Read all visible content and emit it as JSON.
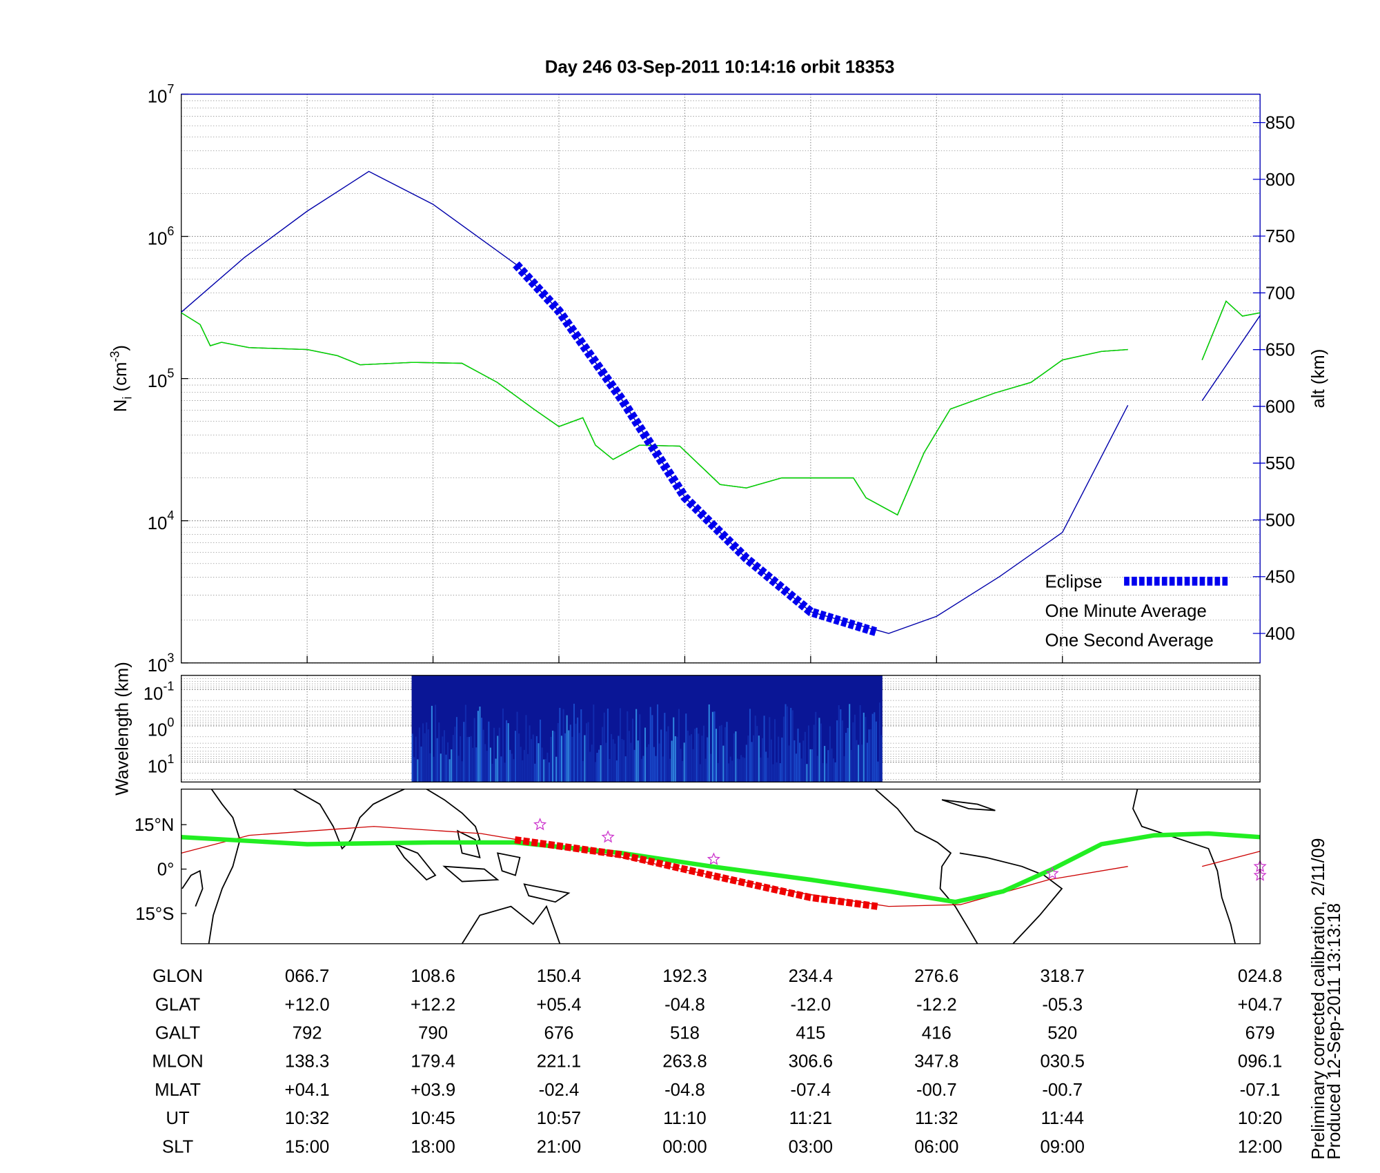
{
  "chart_data": [
    {
      "type": "line",
      "title": "Day 246  03-Sep-2011 10:14:16   orbit 18353",
      "ylabel": [
        "N",
        "i",
        " (cm",
        "-3",
        ")"
      ],
      "y2label": "alt (km)",
      "ylog": true,
      "ylim": [
        1000,
        10000000
      ],
      "yticks": [
        {
          "value": 1000,
          "label": "10",
          "exponent": "3"
        },
        {
          "value": 10000,
          "label": "10",
          "exponent": "4"
        },
        {
          "value": 100000,
          "label": "10",
          "exponent": "5"
        },
        {
          "value": 1000000,
          "label": "10",
          "exponent": "6"
        },
        {
          "value": 10000000,
          "label": "10",
          "exponent": "7"
        }
      ],
      "minor_grid": true,
      "grid": true,
      "y2lim": [
        374,
        875
      ],
      "y2ticks": [
        400,
        450,
        500,
        550,
        600,
        650,
        700,
        750,
        800,
        850
      ],
      "y2color": "#0000cc",
      "xlim": [
        0,
        8.57
      ],
      "xticks": [
        1,
        2,
        3,
        4,
        5,
        6,
        7
      ],
      "legend": "lower right",
      "series": [
        {
          "name": "Eclipse",
          "color": "#0000ee",
          "style": "dashed",
          "axis": "y2",
          "x": [
            2.66,
            3,
            3.5,
            4,
            4.49,
            5,
            5.53
          ],
          "values": [
            725,
            684,
            606,
            520,
            466,
            419,
            401
          ]
        },
        {
          "name": "One Minute Average",
          "color": "#000000",
          "x": [
            0,
            0.15,
            0.23,
            0.32,
            0.54,
            1,
            1.24,
            1.42,
            1.84,
            2.23,
            2.51,
            2.8,
            3,
            3.19,
            3.29,
            3.43,
            3.64,
            3.96,
            4.28,
            4.49,
            4.77,
            5.34,
            5.44,
            5.69,
            5.9,
            6.11,
            6.46,
            6.75,
            7,
            7.31,
            7.52,
            null,
            8.11,
            8.3,
            8.43,
            8.57
          ],
          "values": [
            290000,
            240000,
            170000,
            180000,
            165000,
            160000,
            145000,
            125000,
            130000,
            128000,
            94000,
            61000,
            46000,
            53000,
            34000,
            27000,
            34000,
            33500,
            18000,
            17000,
            20000,
            20000,
            14500,
            11000,
            30000,
            61000,
            79000,
            94000,
            135000,
            155000,
            160000,
            null,
            135000,
            350000,
            275000,
            290000
          ]
        },
        {
          "name": "One Second Average",
          "color": "#00dd00",
          "x": [
            0,
            0.15,
            0.23,
            0.32,
            0.54,
            1,
            1.24,
            1.42,
            1.84,
            2.23,
            2.51,
            2.8,
            3,
            3.19,
            3.29,
            3.43,
            3.64,
            3.96,
            4.28,
            4.49,
            4.77,
            5.34,
            5.44,
            5.69,
            5.9,
            6.11,
            6.46,
            6.75,
            7,
            7.31,
            7.52,
            null,
            8.11,
            8.3,
            8.43,
            8.57
          ],
          "values": [
            290000,
            240000,
            170000,
            180000,
            165000,
            160000,
            145000,
            125000,
            130000,
            128000,
            94000,
            61000,
            46000,
            53000,
            34000,
            27000,
            34000,
            33500,
            18000,
            17000,
            20000,
            20000,
            14500,
            11000,
            30000,
            61000,
            79000,
            94000,
            135000,
            155000,
            160000,
            null,
            135000,
            350000,
            275000,
            290000
          ]
        },
        {
          "color": "#0000aa",
          "axis": "y2",
          "x": [
            0,
            0.5,
            1,
            1.49,
            2,
            2.66,
            3,
            3.5,
            4,
            4.49,
            5,
            5.62,
            6,
            6.5,
            7,
            7.52,
            null,
            8.11,
            8.57
          ],
          "values": [
            683,
            731,
            772,
            807,
            778,
            725,
            684,
            606,
            520,
            466,
            419,
            400,
            415,
            450,
            489,
            601,
            null,
            605,
            680
          ]
        }
      ]
    },
    {
      "type": "spectrogram",
      "ylabel": "Wavelength (km)",
      "ylog": true,
      "yinvert": true,
      "ylim": [
        0.041,
        35
      ],
      "yticks": [
        {
          "value": 0.1,
          "label": "10",
          "exponent": "-1"
        },
        {
          "value": 1,
          "label": "10",
          "exponent": "0"
        },
        {
          "value": 10,
          "label": "10",
          "exponent": "1"
        }
      ],
      "minor_grid": true,
      "xlim": [
        0,
        8.57
      ],
      "extent": [
        1.83,
        5.57
      ]
    },
    {
      "type": "map",
      "ylim": [
        -25.2,
        27
      ],
      "xlim": [
        0,
        8.57
      ],
      "yticks": [
        {
          "value": 15,
          "label": "15°N"
        },
        {
          "value": 0,
          "label": "0°"
        },
        {
          "value": -15,
          "label": "15°S"
        }
      ],
      "series": [
        {
          "color": "#cc0000",
          "style": "thin",
          "x": [
            0,
            0.54,
            1.53,
            2.38,
            3.51,
            4.92,
            5.62,
            6.19,
            6.89,
            7.52,
            null,
            8.11,
            8.57
          ],
          "values": [
            5.4,
            11.4,
            14.4,
            12,
            3.9,
            -8.1,
            -12.6,
            -12,
            -3.6,
            0.9,
            null,
            0.9,
            6
          ]
        },
        {
          "color": "#22ee22",
          "style": "thick",
          "x": [
            0,
            1,
            2,
            2.65,
            3.5,
            4.21,
            5,
            5.62,
            6.15,
            6.53,
            6.92,
            7.31,
            7.73,
            8.16,
            8.57
          ],
          "values": [
            10.8,
            8.4,
            9,
            9,
            5.4,
            0.9,
            -3.6,
            -7.5,
            -11.1,
            -7.5,
            0,
            8.4,
            11.4,
            12,
            10.8
          ]
        },
        {
          "color": "#ee0000",
          "style": "dashed",
          "x": [
            2.65,
            3.5,
            4.21,
            5,
            5.53
          ],
          "values": [
            9.9,
            4.8,
            -2.1,
            -9.6,
            -12.6
          ]
        },
        {
          "color": "#cc33cc",
          "style": "star",
          "x": [
            2.85,
            3.39,
            4.23,
            6.92,
            8.57,
            8.57
          ],
          "values": [
            15,
            10.8,
            3.3,
            -1.5,
            0.9,
            -2.1
          ]
        }
      ]
    }
  ],
  "table": {
    "rows": [
      {
        "label": "GLON",
        "cells": [
          "066.7",
          "108.6",
          "150.4",
          "192.3",
          "234.4",
          "276.6",
          "318.7",
          "024.8"
        ]
      },
      {
        "label": "GLAT",
        "cells": [
          "+12.0",
          "+12.2",
          "+05.4",
          "-04.8",
          "-12.0",
          "-12.2",
          "-05.3",
          "+04.7"
        ]
      },
      {
        "label": "GALT",
        "cells": [
          "792",
          "790",
          "676",
          "518",
          "415",
          "416",
          "520",
          "679"
        ]
      },
      {
        "label": "MLON",
        "cells": [
          "138.3",
          "179.4",
          "221.1",
          "263.8",
          "306.6",
          "347.8",
          "030.5",
          "096.1"
        ]
      },
      {
        "label": "MLAT",
        "cells": [
          "+04.1",
          "+03.9",
          "-02.4",
          "-04.8",
          "-07.4",
          "-00.7",
          "-00.7",
          "-07.1"
        ]
      },
      {
        "label": "UT",
        "cells": [
          "10:32",
          "10:45",
          "10:57",
          "11:10",
          "11:21",
          "11:32",
          "11:44",
          "10:20"
        ]
      },
      {
        "label": "SLT",
        "cells": [
          "15:00",
          "18:00",
          "21:00",
          "00:00",
          "03:00",
          "06:00",
          "09:00",
          "12:00"
        ]
      }
    ]
  },
  "notes": [
    "Preliminary corrected calibration, 2/11/09",
    "Produced 12-Sep-2011 13:13:18"
  ]
}
